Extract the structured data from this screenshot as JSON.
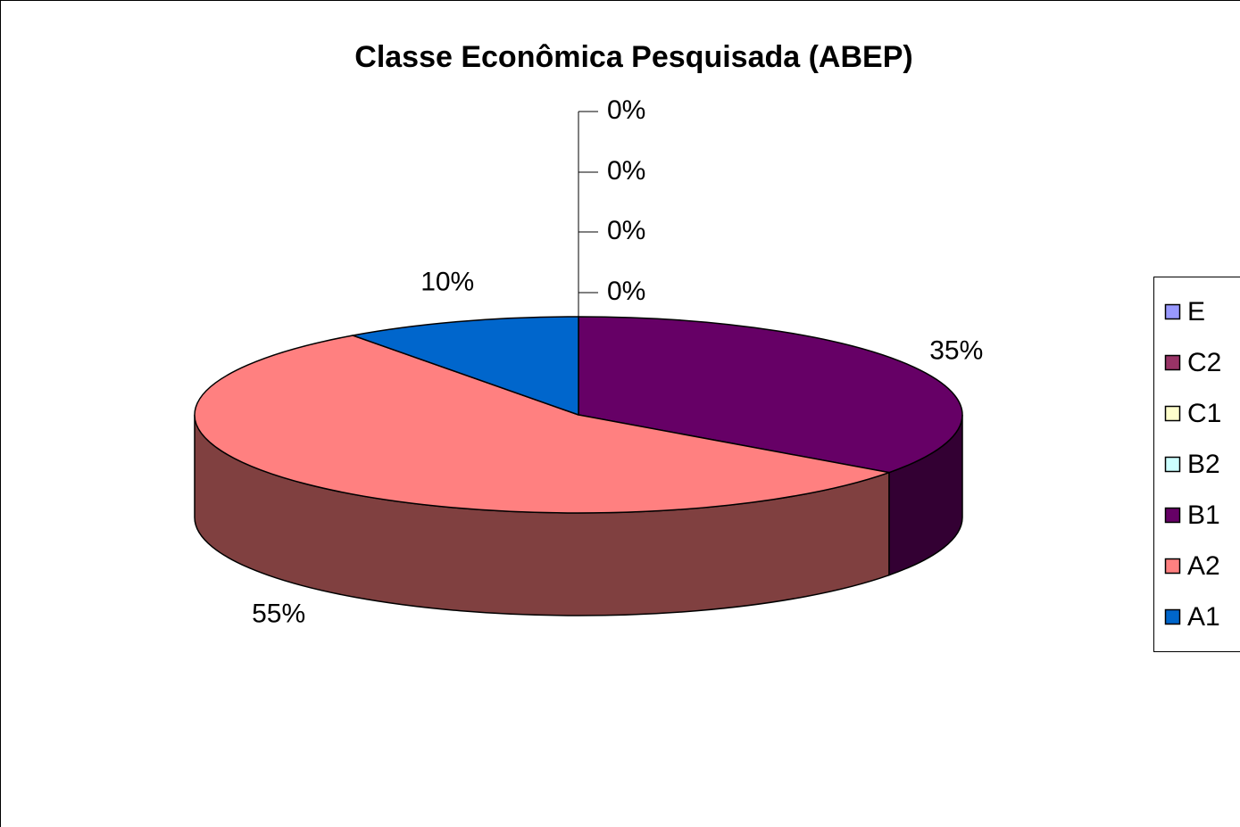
{
  "chart_data": {
    "type": "pie",
    "title": "Classe Econômica Pesquisada (ABEP)",
    "categories": [
      "E",
      "C2",
      "C1",
      "B2",
      "B1",
      "A2",
      "A1"
    ],
    "values": [
      0,
      0,
      0,
      0,
      35,
      55,
      10
    ],
    "value_labels": [
      "0%",
      "0%",
      "0%",
      "0%",
      "35%",
      "55%",
      "10%"
    ],
    "colors": [
      "#9999ff",
      "#993366",
      "#ffffcc",
      "#ccffff",
      "#660066",
      "#ff8080",
      "#0066cc"
    ],
    "legend": "right"
  }
}
